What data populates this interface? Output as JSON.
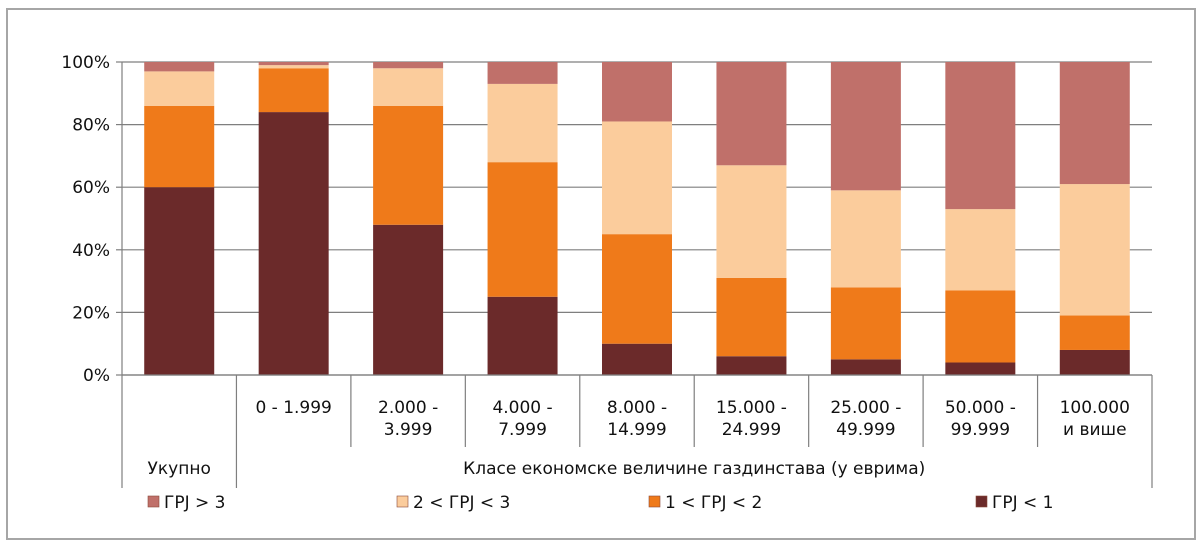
{
  "chart_data": {
    "type": "bar",
    "stacked": true,
    "percent": true,
    "categories": [
      "",
      "0 - 1.999",
      "2.000 -\n3.999",
      "4.000 -\n7.999",
      "8.000 -\n14.999",
      "15.000  -\n24.999",
      "25.000 -\n49.999",
      "50.000 -\n99.999",
      "100.000\nи више"
    ],
    "groups": [
      {
        "label": "Укупно",
        "categories": [
          0
        ]
      },
      {
        "label": "Класе економске величине газдинстава (у еврима)",
        "categories": [
          1,
          2,
          3,
          4,
          5,
          6,
          7,
          8
        ]
      }
    ],
    "series": [
      {
        "name": "ГРЈ < 1",
        "color": "#6b2a2a",
        "values": [
          60,
          84,
          48,
          25,
          10,
          6,
          5,
          4,
          8
        ]
      },
      {
        "name": "1 < ГРЈ < 2",
        "color": "#ef7a1a",
        "values": [
          26,
          14,
          38,
          43,
          35,
          25,
          23,
          23,
          11
        ]
      },
      {
        "name": "2 < ГРЈ < 3",
        "color": "#fbcc9c",
        "values": [
          11,
          1,
          12,
          25,
          36,
          36,
          31,
          26,
          42
        ]
      },
      {
        "name": "ГРЈ > 3",
        "color": "#c0706a",
        "values": [
          3,
          1,
          2,
          7,
          19,
          33,
          41,
          47,
          39
        ]
      }
    ],
    "legend_order": [
      "ГРЈ > 3",
      "2 < ГРЈ < 3",
      "1 < ГРЈ < 2",
      "ГРЈ < 1"
    ],
    "y_ticks": [
      "0%",
      "20%",
      "40%",
      "60%",
      "80%",
      "100%"
    ],
    "ylim": [
      0,
      100
    ],
    "grid": true,
    "legend_position": "bottom"
  }
}
